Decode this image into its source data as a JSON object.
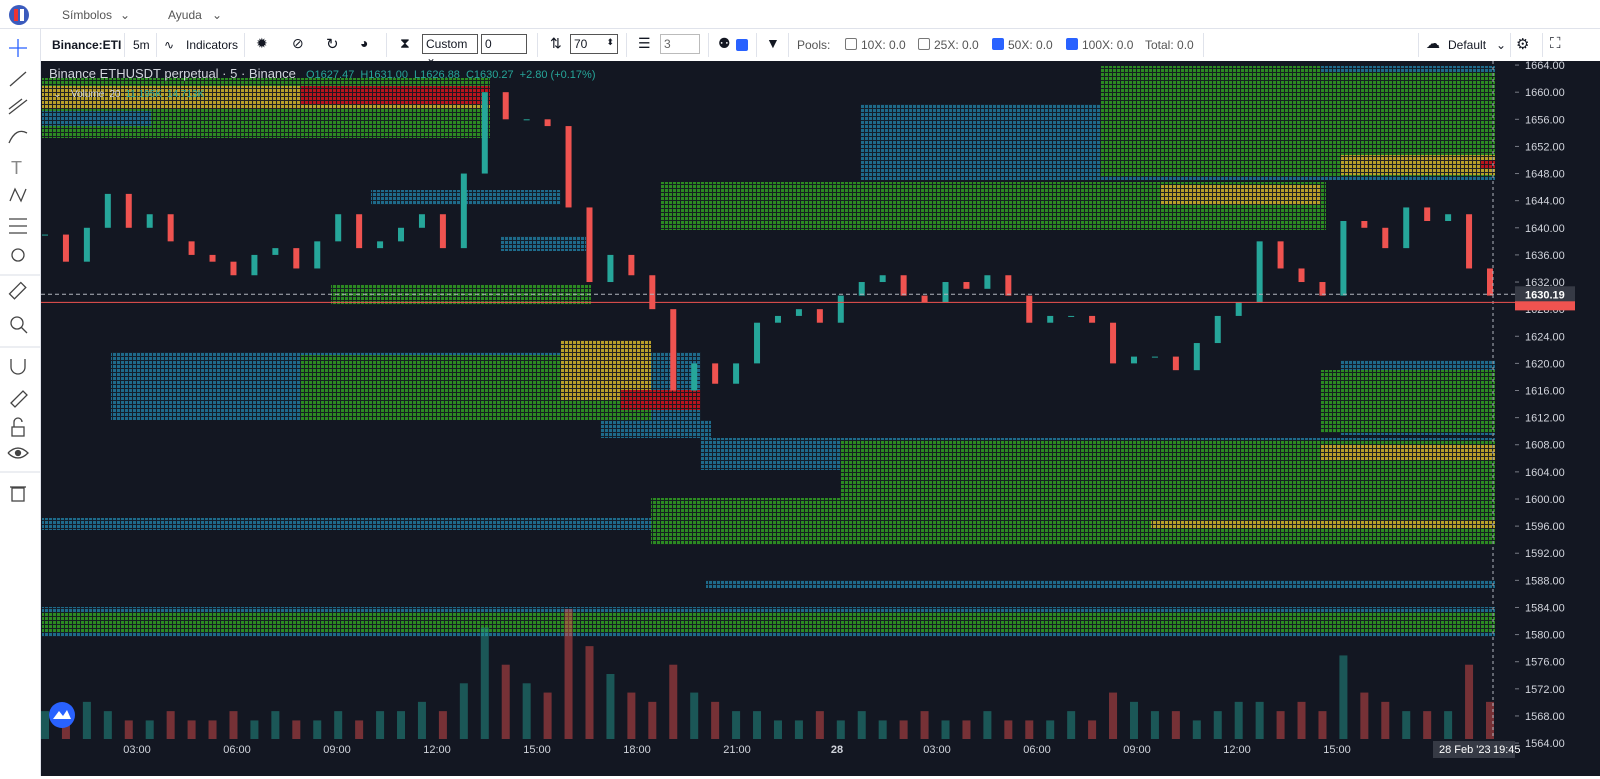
{
  "menu": [
    "Símbolos",
    "Ayuda"
  ],
  "toolbar": {
    "symbol": "Binance:ETI",
    "interval": "5m",
    "indicators": "Indicators",
    "mode": "Custom",
    "input1": "0",
    "input2": "70",
    "input3": "3",
    "pools_label": "Pools:",
    "pools": [
      {
        "label": "10X: 0.0",
        "checked": false
      },
      {
        "label": "25X: 0.0",
        "checked": false
      },
      {
        "label": "50X: 0.0",
        "checked": true
      },
      {
        "label": "100X: 0.0",
        "checked": true
      }
    ],
    "total": "Total: 0.0",
    "layout": "Default"
  },
  "chart_data": {
    "type": "candlestick",
    "title": "Binance ETHUSDT perpetual · 5 · Binance",
    "ohlc": [
      "O1627.47",
      "H1631.00",
      "L1626.88",
      "C1630.27",
      "+2.80 (+0.17%)"
    ],
    "volume_legend": [
      "Volume",
      "20",
      "11.195K",
      "14.713K"
    ],
    "values": [
      1639,
      1635,
      1640,
      1645,
      1640,
      1642,
      1638,
      1636,
      1635,
      1633,
      1636,
      1637,
      1634,
      1638,
      1642,
      1637,
      1638,
      1640,
      1642,
      1637,
      1648,
      1660,
      1656,
      1656,
      1655,
      1643,
      1632,
      1636,
      1633,
      1628,
      1616,
      1620,
      1617,
      1620,
      1626,
      1627,
      1628,
      1626,
      1630,
      1632,
      1633,
      1630,
      1629,
      1632,
      1631,
      1633,
      1630,
      1626,
      1627,
      1627,
      1626,
      1620,
      1621,
      1621,
      1619,
      1623,
      1627,
      1629,
      1638,
      1634,
      1632,
      1630,
      1641,
      1640,
      1637,
      1643,
      1641,
      1642,
      1634,
      1630
    ],
    "volumes": [
      3,
      2,
      4,
      3,
      2,
      2,
      3,
      2,
      2,
      3,
      2,
      3,
      2,
      2,
      3,
      2,
      3,
      3,
      4,
      3,
      6,
      12,
      8,
      6,
      5,
      14,
      10,
      7,
      5,
      4,
      8,
      5,
      4,
      3,
      3,
      2,
      2,
      3,
      2,
      3,
      2,
      2,
      3,
      2,
      2,
      3,
      2,
      2,
      2,
      3,
      2,
      5,
      4,
      3,
      3,
      2,
      3,
      4,
      4,
      3,
      4,
      3,
      9,
      5,
      4,
      3,
      3,
      3,
      8,
      4
    ],
    "ylim": [
      1564.6,
      1664.6
    ],
    "yticks": [
      {
        "value": 1664,
        "label": "1664.00"
      },
      {
        "value": 1660,
        "label": "1660.00"
      },
      {
        "value": 1656,
        "label": "1656.00"
      },
      {
        "value": 1652,
        "label": "1652.00"
      },
      {
        "value": 1648,
        "label": "1648.00"
      },
      {
        "value": 1644,
        "label": "1644.00"
      },
      {
        "value": 1640,
        "label": "1640.00"
      },
      {
        "value": 1636,
        "label": "1636.00"
      },
      {
        "value": 1632,
        "label": "1632.00"
      },
      {
        "value": 1628,
        "label": "1628.00"
      },
      {
        "value": 1624,
        "label": "1624.00"
      },
      {
        "value": 1620,
        "label": "1620.00"
      },
      {
        "value": 1616,
        "label": "1616.00"
      },
      {
        "value": 1612,
        "label": "1612.00"
      },
      {
        "value": 1608,
        "label": "1608.00"
      },
      {
        "value": 1604,
        "label": "1604.00"
      },
      {
        "value": 1600,
        "label": "1600.00"
      },
      {
        "value": 1596,
        "label": "1596.00"
      },
      {
        "value": 1592,
        "label": "1592.00"
      },
      {
        "value": 1588,
        "label": "1588.00"
      },
      {
        "value": 1584,
        "label": "1584.00"
      },
      {
        "value": 1580,
        "label": "1580.00"
      },
      {
        "value": 1576,
        "label": "1576.00"
      },
      {
        "value": 1572,
        "label": "1572.00"
      },
      {
        "value": 1568,
        "label": "1568.00"
      },
      {
        "value": 1564,
        "label": "1564.00"
      }
    ],
    "last_price": {
      "value": 1630.19,
      "label": "1630.19"
    },
    "current_price": 1629,
    "xticks": [
      "03:00",
      "06:00",
      "09:00",
      "12:00",
      "15:00",
      "18:00",
      "21:00",
      "28",
      "03:00",
      "06:00",
      "09:00",
      "12:00",
      "15:00"
    ],
    "cursor_date": "28 Feb '23",
    "cursor_time": "19:45"
  }
}
